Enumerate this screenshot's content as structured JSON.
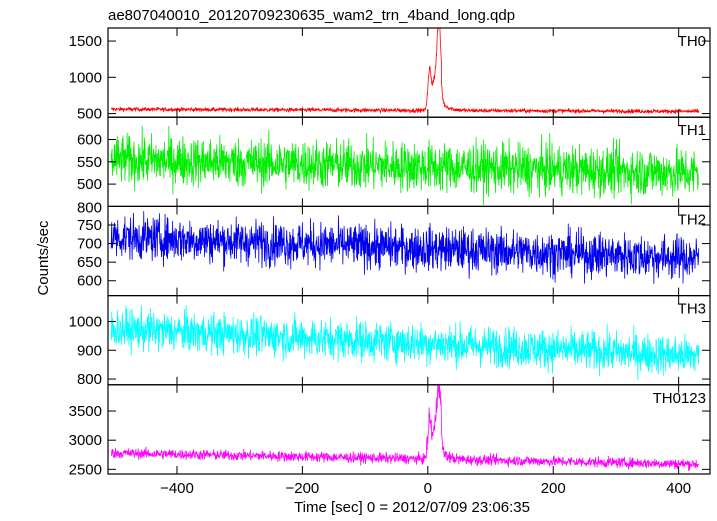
{
  "chart_data": {
    "type": "line",
    "title": "ae807040010_20120709230635_wam2_trn_4band_long.qdp",
    "xlabel": "Time [sec] 0 = 2012/07/09 23:06:35",
    "ylabel": "Counts/sec",
    "xlim": [
      -510,
      450
    ],
    "xticks": [
      -400,
      -200,
      0,
      200,
      400
    ],
    "xtick_labels": [
      "−400",
      "−200",
      "0",
      "200",
      "400"
    ],
    "panels": [
      {
        "label": "TH0",
        "color": "#ff0000",
        "ylim": [
          450,
          1680
        ],
        "yticks": [
          500,
          1000,
          1500
        ],
        "ytick_labels": [
          "500",
          "1000",
          "1500"
        ],
        "model": {
          "x_start": -505,
          "x_end": 432,
          "baseline_start": 560,
          "baseline_end": 530,
          "noise": 14,
          "burst": true,
          "burst_peak": 1650,
          "burst_shoulder": 1080
        }
      },
      {
        "label": "TH1",
        "color": "#00ee00",
        "ylim": [
          450,
          650
        ],
        "yticks": [
          500,
          550,
          600
        ],
        "ytick_labels": [
          "500",
          "550",
          "600"
        ],
        "model": {
          "x_start": -505,
          "x_end": 432,
          "baseline_start": 555,
          "baseline_end": 525,
          "noise": 28,
          "burst": false
        }
      },
      {
        "label": "TH2",
        "color": "#0000ee",
        "ylim": [
          560,
          800
        ],
        "yticks": [
          600,
          650,
          700,
          750
        ],
        "ytick_labels": [
          "600",
          "650",
          "700",
          "750"
        ],
        "top_tick_label": "800",
        "model": {
          "x_start": -505,
          "x_end": 432,
          "baseline_start": 718,
          "baseline_end": 660,
          "noise": 30,
          "burst": false
        }
      },
      {
        "label": "TH3",
        "color": "#00ffff",
        "ylim": [
          780,
          1090
        ],
        "yticks": [
          800,
          900,
          1000
        ],
        "ytick_labels": [
          "800",
          "900",
          "1000"
        ],
        "model": {
          "x_start": -505,
          "x_end": 432,
          "baseline_start": 975,
          "baseline_end": 880,
          "noise": 35,
          "burst": false
        }
      },
      {
        "label": "TH0123",
        "color": "#ff00ff",
        "ylim": [
          2420,
          3950
        ],
        "yticks": [
          2500,
          3000,
          3500
        ],
        "ytick_labels": [
          "2500",
          "3000",
          "3500"
        ],
        "model": {
          "x_start": -505,
          "x_end": 432,
          "baseline_start": 2780,
          "baseline_end": 2590,
          "noise": 45,
          "burst": true,
          "burst_peak": 3900,
          "burst_shoulder": 3330
        }
      }
    ]
  }
}
